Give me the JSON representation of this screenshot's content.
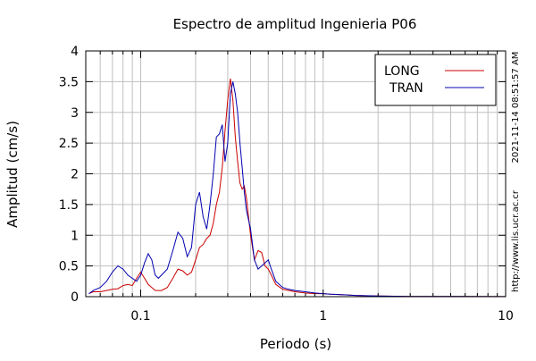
{
  "chart_data": {
    "type": "line",
    "title": "Espectro de amplitud Ingenieria P06",
    "xlabel": "Periodo (s)",
    "ylabel": "Amplitud (cm/s)",
    "x_scale": "log",
    "xlim": [
      0.05,
      10
    ],
    "ylim": [
      0,
      4
    ],
    "x_ticks": [
      {
        "value": 0.1,
        "label": "0.1"
      },
      {
        "value": 1,
        "label": "1"
      },
      {
        "value": 10,
        "label": "10"
      }
    ],
    "y_ticks": [
      {
        "value": 0,
        "label": "0"
      },
      {
        "value": 0.5,
        "label": "0.5"
      },
      {
        "value": 1,
        "label": "1"
      },
      {
        "value": 1.5,
        "label": "1.5"
      },
      {
        "value": 2,
        "label": "2"
      },
      {
        "value": 2.5,
        "label": "2.5"
      },
      {
        "value": 3,
        "label": "3"
      },
      {
        "value": 3.5,
        "label": "3.5"
      },
      {
        "value": 4,
        "label": "4"
      }
    ],
    "grid": true,
    "legend_position": "top-right",
    "series": [
      {
        "name": "LONG",
        "color": "#cc0000",
        "points": [
          [
            0.052,
            0.05
          ],
          [
            0.055,
            0.08
          ],
          [
            0.06,
            0.08
          ],
          [
            0.065,
            0.1
          ],
          [
            0.07,
            0.12
          ],
          [
            0.075,
            0.13
          ],
          [
            0.08,
            0.18
          ],
          [
            0.085,
            0.2
          ],
          [
            0.09,
            0.18
          ],
          [
            0.095,
            0.3
          ],
          [
            0.1,
            0.4
          ],
          [
            0.105,
            0.3
          ],
          [
            0.11,
            0.2
          ],
          [
            0.115,
            0.15
          ],
          [
            0.12,
            0.1
          ],
          [
            0.13,
            0.1
          ],
          [
            0.14,
            0.15
          ],
          [
            0.15,
            0.3
          ],
          [
            0.16,
            0.45
          ],
          [
            0.17,
            0.42
          ],
          [
            0.18,
            0.35
          ],
          [
            0.19,
            0.4
          ],
          [
            0.2,
            0.6
          ],
          [
            0.21,
            0.8
          ],
          [
            0.22,
            0.85
          ],
          [
            0.23,
            0.95
          ],
          [
            0.24,
            1.0
          ],
          [
            0.25,
            1.2
          ],
          [
            0.26,
            1.5
          ],
          [
            0.27,
            1.7
          ],
          [
            0.28,
            2.1
          ],
          [
            0.29,
            2.7
          ],
          [
            0.3,
            3.2
          ],
          [
            0.31,
            3.55
          ],
          [
            0.32,
            3.2
          ],
          [
            0.33,
            2.6
          ],
          [
            0.34,
            2.2
          ],
          [
            0.35,
            1.85
          ],
          [
            0.36,
            1.75
          ],
          [
            0.37,
            1.8
          ],
          [
            0.38,
            1.6
          ],
          [
            0.4,
            1.0
          ],
          [
            0.42,
            0.6
          ],
          [
            0.44,
            0.75
          ],
          [
            0.46,
            0.72
          ],
          [
            0.48,
            0.5
          ],
          [
            0.5,
            0.45
          ],
          [
            0.52,
            0.35
          ],
          [
            0.55,
            0.2
          ],
          [
            0.6,
            0.12
          ],
          [
            0.65,
            0.1
          ],
          [
            0.7,
            0.08
          ],
          [
            0.8,
            0.06
          ],
          [
            0.9,
            0.05
          ],
          [
            1.0,
            0.05
          ],
          [
            1.1,
            0.04
          ],
          [
            1.3,
            0.03
          ],
          [
            1.5,
            0.02
          ],
          [
            2.0,
            0.01
          ],
          [
            3.0,
            0.005
          ],
          [
            5.0,
            0.003
          ],
          [
            10.0,
            0.002
          ]
        ]
      },
      {
        "name": "TRAN",
        "color": "#0000b0",
        "points": [
          [
            0.052,
            0.05
          ],
          [
            0.055,
            0.1
          ],
          [
            0.06,
            0.15
          ],
          [
            0.065,
            0.25
          ],
          [
            0.07,
            0.4
          ],
          [
            0.075,
            0.5
          ],
          [
            0.08,
            0.45
          ],
          [
            0.085,
            0.35
          ],
          [
            0.09,
            0.3
          ],
          [
            0.095,
            0.25
          ],
          [
            0.1,
            0.35
          ],
          [
            0.105,
            0.55
          ],
          [
            0.11,
            0.7
          ],
          [
            0.115,
            0.6
          ],
          [
            0.12,
            0.35
          ],
          [
            0.125,
            0.3
          ],
          [
            0.13,
            0.35
          ],
          [
            0.14,
            0.45
          ],
          [
            0.15,
            0.75
          ],
          [
            0.16,
            1.05
          ],
          [
            0.17,
            0.95
          ],
          [
            0.18,
            0.65
          ],
          [
            0.19,
            0.8
          ],
          [
            0.2,
            1.5
          ],
          [
            0.21,
            1.7
          ],
          [
            0.22,
            1.3
          ],
          [
            0.23,
            1.1
          ],
          [
            0.24,
            1.5
          ],
          [
            0.25,
            2.0
          ],
          [
            0.26,
            2.6
          ],
          [
            0.27,
            2.65
          ],
          [
            0.28,
            2.8
          ],
          [
            0.29,
            2.2
          ],
          [
            0.3,
            2.5
          ],
          [
            0.31,
            3.3
          ],
          [
            0.32,
            3.5
          ],
          [
            0.33,
            3.3
          ],
          [
            0.34,
            3.0
          ],
          [
            0.35,
            2.5
          ],
          [
            0.36,
            2.1
          ],
          [
            0.37,
            1.7
          ],
          [
            0.38,
            1.4
          ],
          [
            0.4,
            1.1
          ],
          [
            0.42,
            0.6
          ],
          [
            0.44,
            0.45
          ],
          [
            0.46,
            0.5
          ],
          [
            0.48,
            0.55
          ],
          [
            0.5,
            0.6
          ],
          [
            0.52,
            0.45
          ],
          [
            0.55,
            0.25
          ],
          [
            0.6,
            0.15
          ],
          [
            0.65,
            0.12
          ],
          [
            0.7,
            0.1
          ],
          [
            0.8,
            0.08
          ],
          [
            0.9,
            0.06
          ],
          [
            1.0,
            0.05
          ],
          [
            1.1,
            0.04
          ],
          [
            1.3,
            0.03
          ],
          [
            1.5,
            0.02
          ],
          [
            2.0,
            0.01
          ],
          [
            3.0,
            0.005
          ],
          [
            5.0,
            0.003
          ],
          [
            10.0,
            0.002
          ]
        ]
      }
    ],
    "side_annotations": {
      "timestamp": "2021-11-14 08:51:57 AM",
      "url": "http://www.lis.ucr.ac.cr"
    }
  }
}
